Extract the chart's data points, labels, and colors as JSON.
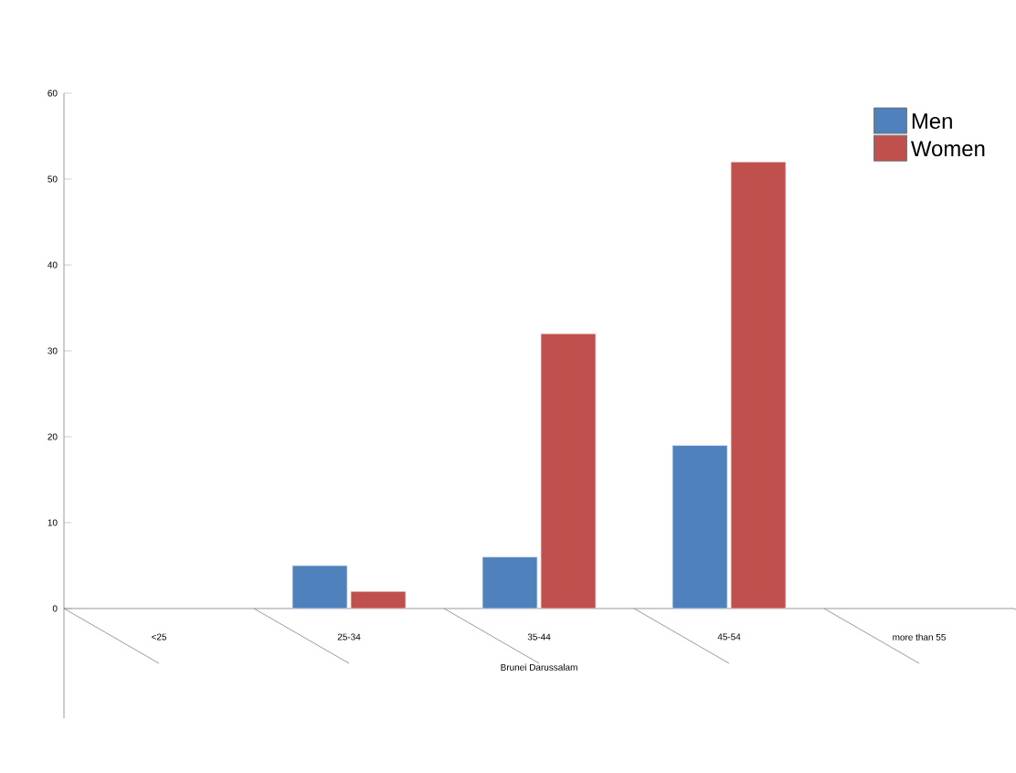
{
  "chart_data": {
    "type": "bar",
    "xlabel": "Brunei Darussalam",
    "categories": [
      "<25",
      "25-34",
      "35-44",
      "45-54",
      "more than 55"
    ],
    "series": [
      {
        "name": "Men",
        "color": "#4f81bd",
        "values": [
          null,
          5,
          6,
          19,
          null
        ]
      },
      {
        "name": "Women",
        "color": "#c0504d",
        "values": [
          null,
          2,
          32,
          52,
          null
        ]
      }
    ],
    "ylim": [
      0,
      60
    ],
    "yticks": [
      0,
      10,
      20,
      30,
      40,
      50,
      60
    ],
    "grid": false,
    "legend": "top right"
  }
}
